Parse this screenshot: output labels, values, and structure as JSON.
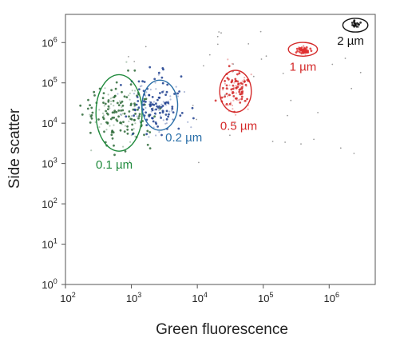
{
  "chart_data": {
    "type": "scatter",
    "title": "",
    "xlabel": "Green fluorescence",
    "ylabel": "Side scatter",
    "xscale": "log",
    "yscale": "log",
    "xlim": [
      100,
      5000000
    ],
    "ylim": [
      1,
      5000000
    ],
    "x_ticks": [
      {
        "value": 100,
        "base": "10",
        "exp": "2"
      },
      {
        "value": 1000,
        "base": "10",
        "exp": "3"
      },
      {
        "value": 10000,
        "base": "10",
        "exp": "4"
      },
      {
        "value": 100000,
        "base": "10",
        "exp": "5"
      },
      {
        "value": 1000000,
        "base": "10",
        "exp": "6"
      }
    ],
    "y_ticks": [
      {
        "value": 1,
        "base": "10",
        "exp": "0"
      },
      {
        "value": 10,
        "base": "10",
        "exp": "1"
      },
      {
        "value": 100,
        "base": "10",
        "exp": "2"
      },
      {
        "value": 1000,
        "base": "10",
        "exp": "3"
      },
      {
        "value": 10000,
        "base": "10",
        "exp": "4"
      },
      {
        "value": 100000,
        "base": "10",
        "exp": "5"
      },
      {
        "value": 1000000,
        "base": "10",
        "exp": "6"
      }
    ],
    "grid": false,
    "legend": "none",
    "populations": [
      {
        "label": "0.1 µm",
        "color": "#1f8a3c",
        "dot_color": "#2f6b3a",
        "center": [
          650,
          20000
        ],
        "spread_log": [
          0.27,
          0.42
        ],
        "count": 170,
        "gate_center": [
          650,
          18000
        ],
        "gate_radius_log": [
          0.35,
          0.95
        ]
      },
      {
        "label": "0.2 µm",
        "color": "#2a6fa8",
        "dot_color": "#1f3f8f",
        "center": [
          2600,
          28000
        ],
        "spread_log": [
          0.2,
          0.34
        ],
        "count": 150,
        "gate_center": [
          2700,
          28000
        ],
        "gate_radius_log": [
          0.27,
          0.62
        ]
      },
      {
        "label": "0.5 µm",
        "color": "#d42a2a",
        "dot_color": "#d42a2a",
        "center": [
          38000,
          65000
        ],
        "spread_log": [
          0.12,
          0.22
        ],
        "count": 110,
        "gate_center": [
          38000,
          62000
        ],
        "gate_radius_log": [
          0.24,
          0.52
        ]
      },
      {
        "label": "1 µm",
        "color": "#d42a2a",
        "dot_color": "#e03030",
        "center": [
          400000,
          650000
        ],
        "spread_log": [
          0.04,
          0.05
        ],
        "count": 70,
        "gate_center": [
          400000,
          680000
        ],
        "gate_radius_log": [
          0.22,
          0.17
        ]
      },
      {
        "label": "2 µm",
        "color": "#111111",
        "dot_color": "#111111",
        "center": [
          2500000,
          2700000
        ],
        "spread_log": [
          0.025,
          0.04
        ],
        "count": 25,
        "gate_center": [
          2500000,
          2700000
        ],
        "gate_radius_log": [
          0.19,
          0.17
        ]
      }
    ]
  }
}
